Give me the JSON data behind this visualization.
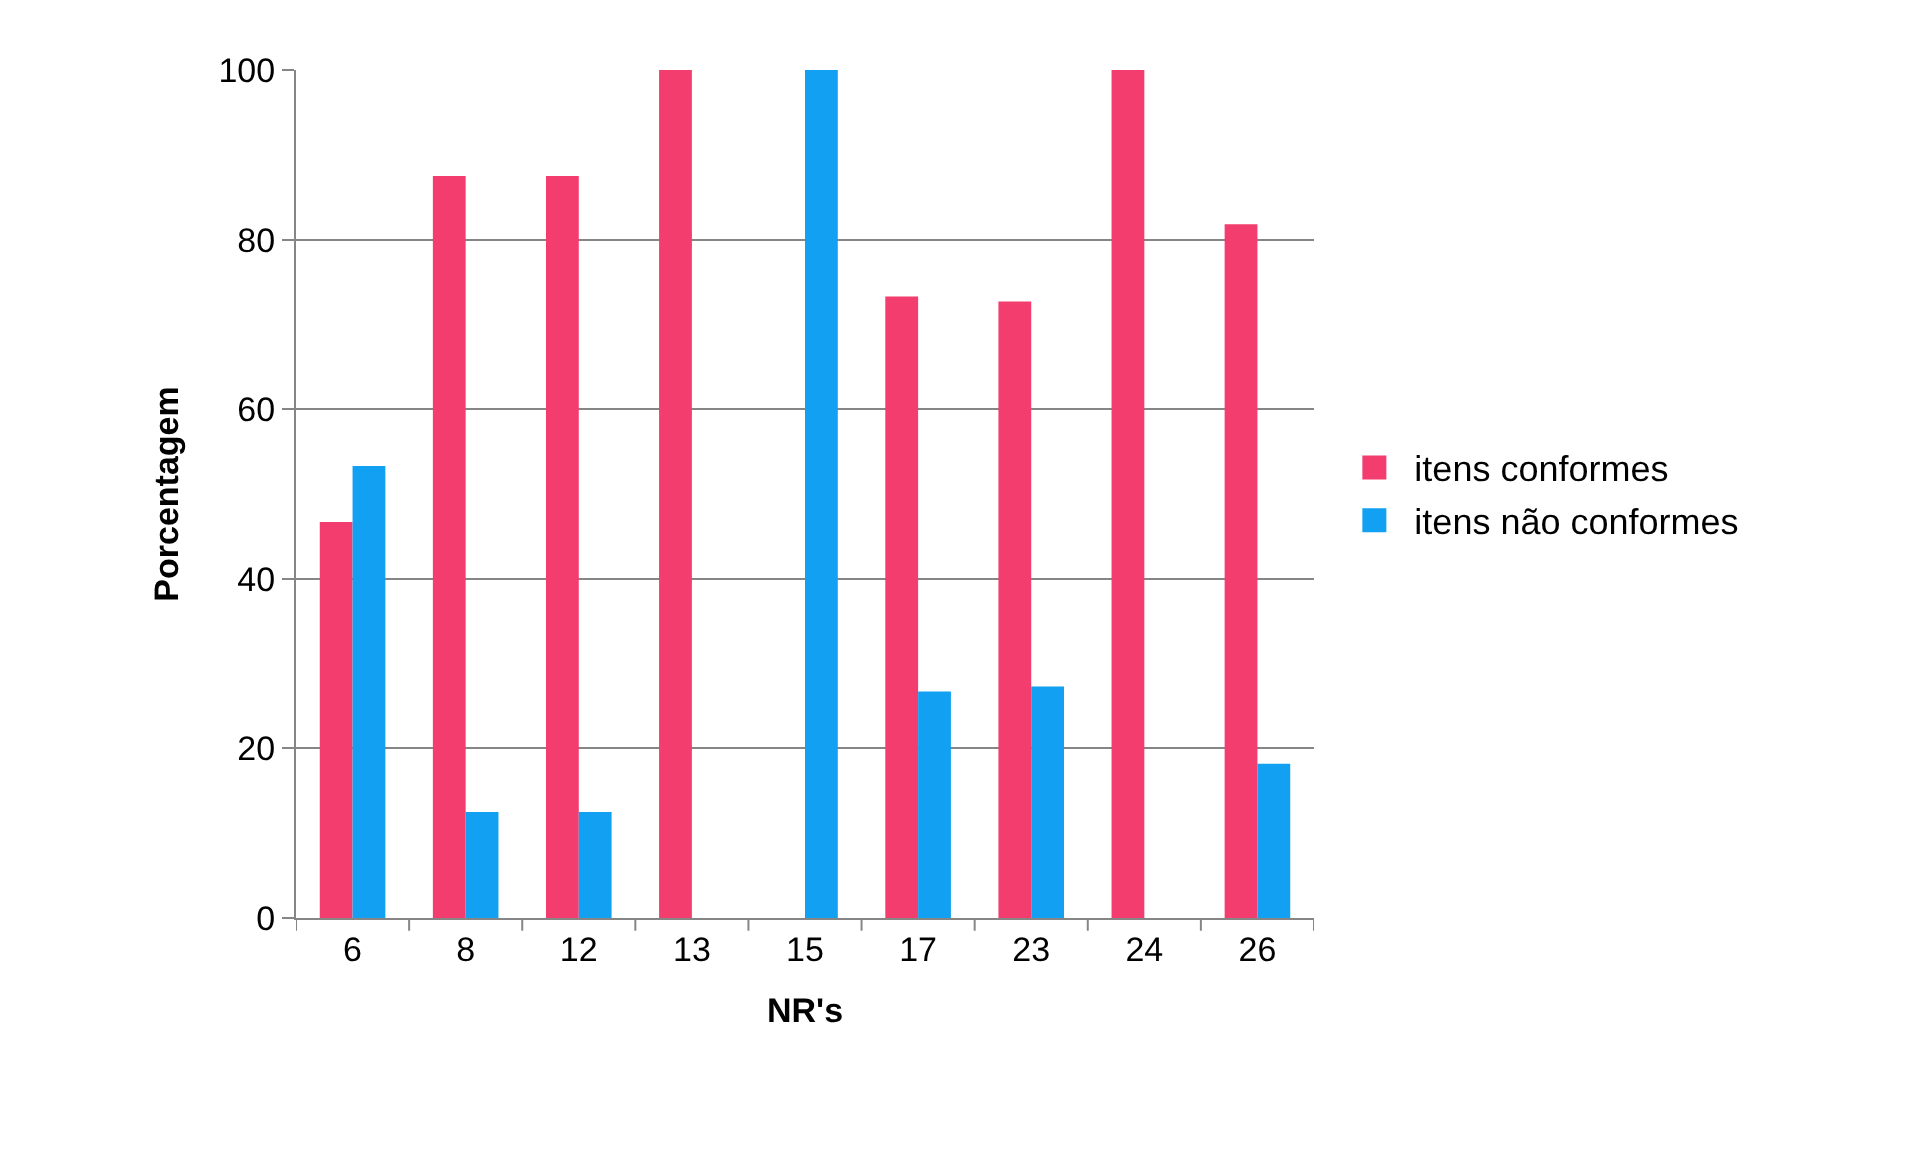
{
  "chart_data": {
    "type": "bar",
    "xlabel": "NR's",
    "ylabel": "Porcentagem",
    "categories": [
      "6",
      "8",
      "12",
      "13",
      "15",
      "17",
      "23",
      "24",
      "26"
    ],
    "series": [
      {
        "name": "itens conformes",
        "color": "#f23d6e",
        "values": [
          46.7,
          87.5,
          87.5,
          100,
          0,
          73.3,
          72.7,
          100,
          81.8
        ]
      },
      {
        "name": "itens não conformes",
        "color": "#12a0f2",
        "values": [
          53.3,
          12.5,
          12.5,
          0,
          100,
          26.7,
          27.3,
          0,
          18.2
        ]
      }
    ],
    "ylim": [
      0,
      100
    ],
    "yticks": [
      0,
      20,
      40,
      60,
      80,
      100
    ],
    "grid": "y",
    "legend": "right"
  }
}
